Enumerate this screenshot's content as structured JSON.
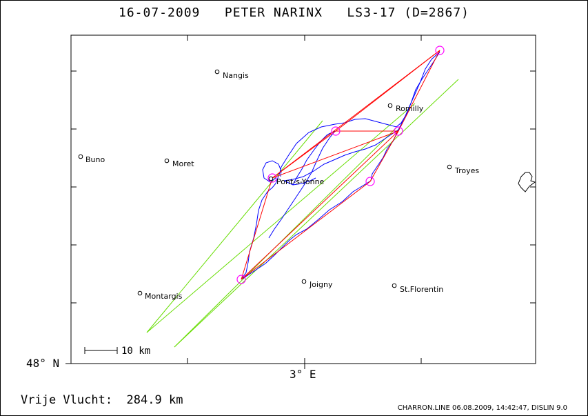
{
  "title": "16-07-2009   PETER NARINX   LS3-17 (D=2867)",
  "axes": {
    "lat_label": "48° N",
    "lon_label": "3° E"
  },
  "scale_bar_label": "10 km",
  "towns": [
    {
      "name": "Nangis"
    },
    {
      "name": "Romilly"
    },
    {
      "name": "Buno"
    },
    {
      "name": "Moret"
    },
    {
      "name": "Troyes"
    },
    {
      "name": "Pont-s-Yonne"
    },
    {
      "name": "Joigny"
    },
    {
      "name": "Montargis"
    },
    {
      "name": "St.Florentin"
    }
  ],
  "free_flight": {
    "label": "Vrije Vlucht:",
    "value": "284.9 km"
  },
  "footer": "CHARRON.LINE 06.08.2009, 14:42:47, DISLIN 9.0",
  "colors": {
    "track": "#0000ff",
    "route": "#ff0000",
    "sector": "#66dd00",
    "turnpoint": "#ff00ff"
  }
}
